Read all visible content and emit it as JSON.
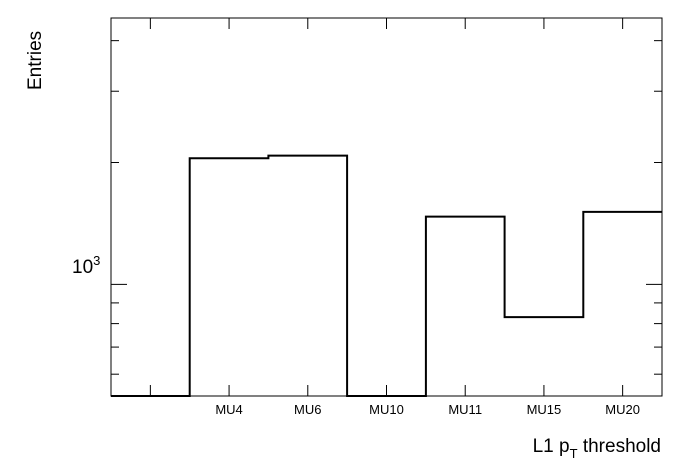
{
  "chart_data": {
    "type": "bar",
    "style": "step-histogram",
    "categories": [
      "",
      "MU4",
      "MU6",
      "MU10",
      "MU11",
      "MU15",
      "MU20"
    ],
    "values": [
      530,
      2050,
      2080,
      530,
      1470,
      830,
      1510
    ],
    "xlabel": "L1 p",
    "xlabel_sub": "T",
    "xlabel_rest": " threshold",
    "ylabel": "Entries",
    "ylabel_tick_base": "10",
    "ylabel_tick_exp": "3",
    "y_scale": "log",
    "ylim": [
      530,
      4550
    ],
    "grid": false,
    "line_color": "#000000"
  }
}
